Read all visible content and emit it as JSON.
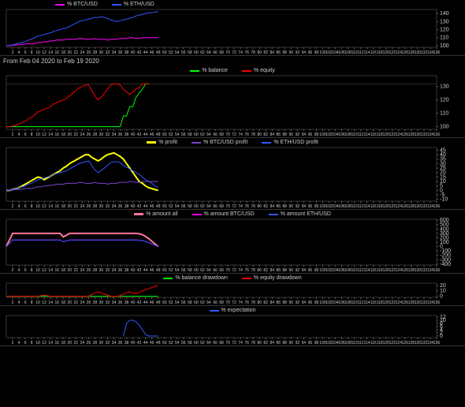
{
  "dateRange": "From Feb 04 2020 to Feb 19 2020",
  "xAxis": {
    "step": 2,
    "max": 136
  },
  "panel1": {
    "legend": [
      {
        "label": "% BTC/USD",
        "color": "#ff00ff"
      },
      {
        "label": "% ETH/USD",
        "color": "#3355ff"
      }
    ],
    "yTicks": [
      100,
      110,
      120,
      130,
      140
    ],
    "ylim": [
      98,
      145
    ],
    "height": 60,
    "series": [
      {
        "color": "#ff00ff",
        "width": 1,
        "data": [
          100,
          100,
          100.5,
          101,
          101,
          101.5,
          102,
          102.5,
          102,
          103,
          104,
          104,
          105,
          105,
          106,
          106,
          107,
          107,
          107,
          108,
          108,
          108,
          108,
          109,
          109,
          108,
          108,
          108,
          109,
          108,
          108,
          108,
          107,
          108,
          108,
          108,
          109,
          109,
          109,
          110,
          110,
          109,
          109,
          110,
          110,
          110,
          110,
          110,
          110
        ]
      },
      {
        "color": "#3355ff",
        "width": 1,
        "data": [
          100,
          100.5,
          101,
          102,
          103,
          104,
          105,
          107,
          108,
          110,
          112,
          113,
          114,
          115,
          116,
          118,
          119,
          120,
          121,
          122,
          124,
          126,
          128,
          130,
          131,
          132,
          133,
          134,
          135,
          135,
          136,
          135,
          134,
          132,
          131,
          130,
          131,
          132,
          133,
          134,
          135,
          137,
          138,
          139,
          140,
          141,
          141,
          142,
          142
        ]
      }
    ]
  },
  "panel2": {
    "legend": [
      {
        "label": "% balance",
        "color": "#00ff00"
      },
      {
        "label": "% equity",
        "color": "#ff0000"
      }
    ],
    "yTicks": [
      100,
      110,
      120,
      130
    ],
    "ylim": [
      98,
      138
    ],
    "height": 80,
    "series": [
      {
        "color": "#00ff00",
        "width": 1,
        "data": [
          100,
          100,
          100,
          100,
          100,
          100,
          100,
          100,
          100,
          100,
          100,
          100,
          100,
          100,
          100,
          100,
          100,
          100,
          100,
          100,
          100,
          100,
          100,
          100,
          100,
          100,
          100,
          100,
          100,
          100,
          100,
          100,
          100,
          100,
          100,
          100,
          100,
          108,
          108,
          115,
          115,
          122,
          125,
          128,
          132,
          132
        ]
      },
      {
        "color": "#ff0000",
        "width": 1,
        "data": [
          100,
          100,
          100.5,
          101,
          102,
          103,
          104,
          106,
          107,
          109,
          111,
          112,
          113,
          114,
          115,
          117,
          118,
          119,
          120,
          121,
          123,
          125,
          127,
          129,
          130,
          131,
          131,
          127,
          123,
          120,
          122,
          125,
          128,
          131,
          132,
          132,
          131,
          128,
          126,
          124,
          126,
          128,
          129,
          132,
          132,
          132
        ]
      }
    ],
    "hline": {
      "y": 132,
      "color": "#555555"
    }
  },
  "panel3": {
    "legend": [
      {
        "label": "% profit",
        "color": "#ffff00",
        "thick": true
      },
      {
        "label": "% BTC/USD profit",
        "color": "#7744cc"
      },
      {
        "label": "% ETH/USD profit",
        "color": "#3355ff"
      }
    ],
    "yTicks": [
      -10,
      -5,
      0,
      5,
      10,
      15,
      20,
      25,
      30,
      35,
      40,
      45
    ],
    "ylim": [
      -12,
      48
    ],
    "height": 80,
    "series": [
      {
        "color": "#ffff00",
        "width": 2,
        "data": [
          0,
          0,
          1,
          2,
          3,
          5,
          7,
          9,
          11,
          13,
          15,
          14,
          12,
          14,
          16,
          18,
          20,
          22,
          25,
          27,
          30,
          32,
          34,
          36,
          38,
          40,
          40,
          37,
          35,
          33,
          35,
          38,
          40,
          41,
          42,
          40,
          38,
          35,
          30,
          25,
          20,
          15,
          10,
          8,
          5,
          3,
          2,
          1,
          0
        ]
      },
      {
        "color": "#7744cc",
        "width": 1,
        "data": [
          0,
          0,
          0.5,
          1,
          1,
          1.5,
          2,
          2.5,
          2,
          3,
          4,
          4,
          5,
          5,
          6,
          6,
          7,
          7,
          7,
          8,
          8,
          8,
          8,
          9,
          9,
          8,
          8,
          8,
          9,
          8,
          8,
          8,
          7,
          8,
          8,
          8,
          9,
          9,
          9,
          10,
          10,
          9,
          9,
          10,
          10,
          10,
          10,
          10,
          10
        ]
      },
      {
        "color": "#3355ff",
        "width": 1,
        "data": [
          0,
          0.5,
          1,
          2,
          3,
          4,
          5,
          7,
          8,
          10,
          12,
          13,
          14,
          15,
          16,
          18,
          19,
          20,
          21,
          22,
          24,
          26,
          28,
          30,
          31,
          32,
          33,
          28,
          23,
          20,
          22,
          25,
          28,
          31,
          32,
          32,
          31,
          28,
          26,
          24,
          22,
          20,
          18,
          15,
          12,
          10,
          8,
          5,
          3
        ]
      }
    ]
  },
  "panel4": {
    "legend": [
      {
        "label": "% amount all",
        "color": "#ff7799",
        "thick": true
      },
      {
        "label": "% amount BTC/USD",
        "color": "#ff00ff"
      },
      {
        "label": "% amount ETH/USD",
        "color": "#3355ff"
      }
    ],
    "yTicks": [
      -400,
      -300,
      -200,
      -100,
      0,
      100,
      200,
      300,
      400,
      500,
      600
    ],
    "ylim": [
      -420,
      620
    ],
    "height": 70,
    "series": [
      {
        "color": "#ff7799",
        "width": 2,
        "data": [
          0,
          150,
          300,
          300,
          300,
          300,
          300,
          300,
          300,
          300,
          300,
          300,
          300,
          300,
          300,
          300,
          300,
          300,
          220,
          260,
          300,
          300,
          300,
          300,
          300,
          300,
          300,
          300,
          300,
          300,
          300,
          300,
          300,
          300,
          300,
          300,
          300,
          300,
          300,
          300,
          300,
          300,
          290,
          270,
          230,
          180,
          120,
          60,
          0
        ]
      },
      {
        "color": "#ff00ff",
        "width": 1,
        "data": [
          0,
          75,
          150,
          150,
          150,
          150,
          150,
          150,
          150,
          150,
          150,
          150,
          150,
          150,
          150,
          150,
          150,
          150,
          110,
          130,
          150,
          150,
          150,
          150,
          150,
          150,
          150,
          150,
          150,
          150,
          150,
          150,
          150,
          150,
          150,
          150,
          150,
          150,
          150,
          150,
          150,
          150,
          145,
          135,
          115,
          90,
          60,
          30,
          0
        ]
      },
      {
        "color": "#3355ff",
        "width": 1,
        "data": [
          0,
          75,
          150,
          150,
          150,
          150,
          150,
          150,
          150,
          150,
          150,
          150,
          150,
          150,
          150,
          150,
          150,
          150,
          110,
          130,
          150,
          150,
          150,
          150,
          150,
          150,
          150,
          150,
          150,
          150,
          150,
          150,
          150,
          150,
          150,
          150,
          150,
          150,
          150,
          150,
          150,
          150,
          145,
          135,
          115,
          90,
          60,
          30,
          0
        ]
      }
    ]
  },
  "panel5": {
    "legend": [
      {
        "label": "% balance drawdown",
        "color": "#00ff00"
      },
      {
        "label": "% equity drawdown",
        "color": "#ff0000"
      }
    ],
    "yTicks": [
      0,
      10,
      20
    ],
    "ylim": [
      -2,
      24
    ],
    "height": 30,
    "series": [
      {
        "color": "#00ff00",
        "width": 1,
        "data": [
          0,
          0,
          0,
          0,
          0,
          0,
          0,
          0,
          0,
          0,
          0,
          0,
          0,
          0,
          0,
          0,
          0,
          0,
          0,
          0,
          0,
          0,
          0,
          0,
          0,
          0,
          0,
          0,
          0,
          0,
          0,
          0,
          0,
          0,
          0,
          0,
          0,
          0,
          0,
          0,
          0,
          0,
          0,
          0,
          0,
          0,
          0,
          0,
          0
        ]
      },
      {
        "color": "#ff0000",
        "width": 1,
        "data": [
          0,
          0,
          0,
          0,
          0,
          0,
          0,
          0,
          0,
          0,
          0,
          1,
          2,
          1,
          0,
          0,
          0,
          0,
          0,
          0,
          0,
          0,
          0,
          0,
          0,
          0,
          0,
          3,
          6,
          8,
          6,
          4,
          2,
          0,
          0,
          0,
          1,
          4,
          6,
          8,
          6,
          5,
          7,
          10,
          12,
          14,
          16,
          18,
          20
        ]
      }
    ]
  },
  "panel6": {
    "legend": [
      {
        "label": "% expectation",
        "color": "#3355ff"
      }
    ],
    "yTicks": [
      0,
      2,
      4,
      6,
      8,
      10,
      12
    ],
    "ylim": [
      -1,
      13
    ],
    "height": 40,
    "series": [
      {
        "color": "#3355ff",
        "width": 1,
        "data": [
          null,
          null,
          null,
          null,
          null,
          null,
          null,
          null,
          null,
          null,
          null,
          null,
          null,
          null,
          null,
          null,
          null,
          null,
          null,
          null,
          null,
          null,
          null,
          null,
          null,
          null,
          null,
          null,
          null,
          null,
          null,
          null,
          null,
          null,
          null,
          null,
          null,
          0,
          8,
          10,
          10,
          9,
          7,
          4,
          1,
          0,
          0,
          0,
          0
        ]
      }
    ]
  },
  "colors": {
    "bg": "#000000",
    "axis": "#666666",
    "text": "#cccccc"
  }
}
